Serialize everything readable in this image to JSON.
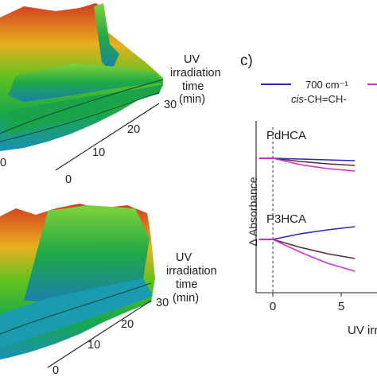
{
  "panel_label": "c)",
  "panels_3d": [
    {
      "axis_title_lines": [
        "UV",
        "irradiation",
        "time",
        "(min)"
      ],
      "time_ticks": [
        "0",
        "10",
        "20",
        "30"
      ],
      "partial_tick": "0"
    },
    {
      "axis_title_lines": [
        "UV",
        "irradiation",
        "time",
        "(min)"
      ],
      "time_ticks": [
        "0",
        "10",
        "20",
        "30"
      ]
    }
  ],
  "legend": [
    {
      "label": "700 cm⁻¹",
      "sublabel_italic": "cis",
      "sublabel_rest": "-CH=CH-",
      "color": "#2a2ab8"
    },
    {
      "label": "",
      "color": "#cc33cc"
    }
  ],
  "colors": {
    "series_blue": "#2a2ab8",
    "series_magenta": "#cc33cc",
    "series_dark": "#5a2a3a",
    "axis": "#222222"
  },
  "chart_data": {
    "type": "line",
    "ylabel": "Δ Absorbance",
    "xlabel": "UV irr",
    "x_ticks": [
      "0",
      "5"
    ],
    "xlim": [
      -1.5,
      6.5
    ],
    "ylim": [
      -1.0,
      1.0
    ],
    "zero_marker": "dashed vertical line at x = 0",
    "subpanels": [
      {
        "title": "PdHCA",
        "series": [
          {
            "color": "blue",
            "x": [
              -1,
              0,
              2,
              4,
              6
            ],
            "y": [
              0.0,
              0.0,
              -0.01,
              -0.02,
              -0.03
            ]
          },
          {
            "color": "dark",
            "x": [
              -1,
              0,
              2,
              4,
              6
            ],
            "y": [
              0.0,
              0.0,
              -0.04,
              -0.07,
              -0.09
            ]
          },
          {
            "color": "magenta",
            "x": [
              -1,
              0,
              2,
              4,
              6
            ],
            "y": [
              0.0,
              0.0,
              -0.08,
              -0.13,
              -0.16
            ]
          }
        ]
      },
      {
        "title": "P3HCA",
        "series": [
          {
            "color": "blue",
            "x": [
              -1,
              0,
              2,
              4,
              6
            ],
            "y": [
              0.0,
              0.0,
              0.07,
              0.12,
              0.16
            ]
          },
          {
            "color": "dark",
            "x": [
              -1,
              0,
              2,
              4,
              6
            ],
            "y": [
              0.0,
              0.0,
              -0.1,
              -0.18,
              -0.24
            ]
          },
          {
            "color": "magenta",
            "x": [
              -1,
              0,
              2,
              4,
              6
            ],
            "y": [
              0.0,
              0.0,
              -0.16,
              -0.3,
              -0.4
            ]
          }
        ]
      }
    ]
  }
}
